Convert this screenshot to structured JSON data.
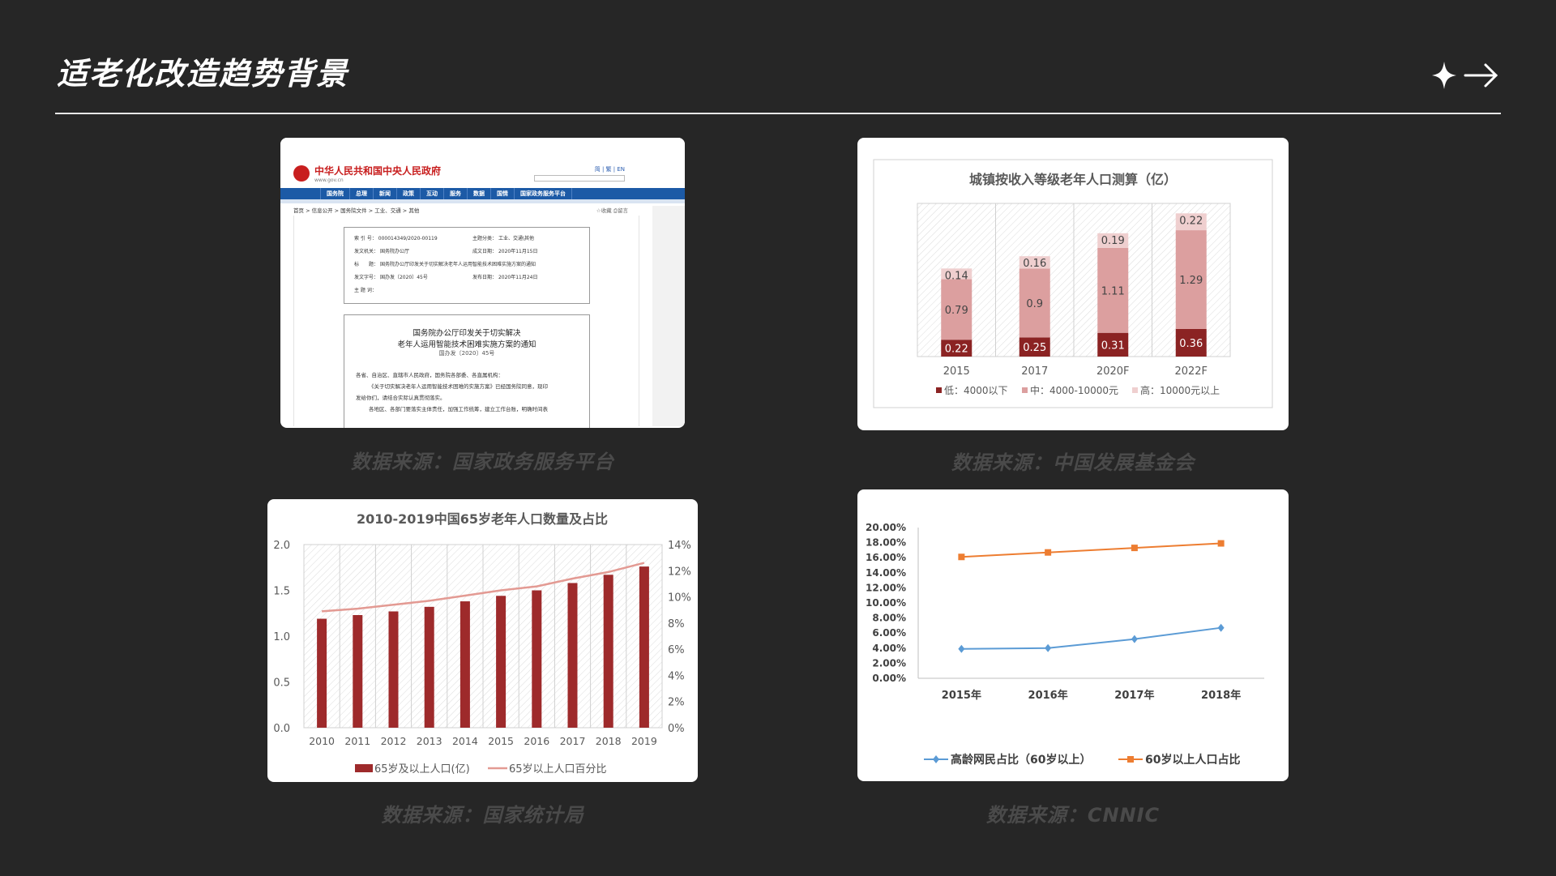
{
  "slide": {
    "title": "适老化改造趋势背景"
  },
  "icons": {
    "sparkle": "sparkle-icon",
    "arrow": "arrow-right-icon"
  },
  "captions": [
    "数据来源：国家政务服务平台",
    "数据来源：中国发展基金会",
    "数据来源：国家统计局",
    "数据来源：CNNIC"
  ],
  "gov_page": {
    "site_name": "中华人民共和国中央人民政府",
    "site_url": "www.gov.cn",
    "tools": "简 | 繁 | EN",
    "nav": [
      "国务院",
      "总理",
      "新闻",
      "政策",
      "互动",
      "服务",
      "数据",
      "国情",
      "国家政务服务平台"
    ],
    "breadcrumb": "首页 > 信息公开 > 国务院文件 > 工业、交通 > 其他",
    "fav": "☆收藏  ⎙留言",
    "meta": {
      "index_label": "索 引 号：",
      "index": "000014349/2020-00119",
      "topic_label": "主题分类：",
      "topic": "工业、交通\\其他",
      "issuer_label": "发文机关：",
      "issuer": "国务院办公厅",
      "date_label": "成文日期：",
      "date": "2020年11月15日",
      "title_label": "标　　题：",
      "title": "国务院办公厅印发关于切实解决老年人运用智能技术困难实施方案的通知",
      "doc_no_label": "发文字号：",
      "doc_no": "国办发〔2020〕45号",
      "pub_label": "发布日期：",
      "pub": "2020年11月24日",
      "subject_label": "主 题 词："
    },
    "notice": {
      "title1": "国务院办公厅印发关于切实解决",
      "title2": "老年人运用智能技术困难实施方案的通知",
      "doc_no": "国办发〔2020〕45号",
      "para1": "各省、自治区、直辖市人民政府，国务院各部委、各直属机构：",
      "para2": "《关于切实解决老年人运用智能技术困难的实施方案》已经国务院同意，现印",
      "para3": "发给你们，请结合实际认真贯彻落实。",
      "para4": "各地区、各部门要落实主体责任，加强工作统筹，建立工作台账，明确时间表"
    }
  },
  "chart_data": [
    {
      "type": "bar",
      "stacked": true,
      "title": "城镇按收入等级老年人口测算（亿）",
      "categories": [
        "2015",
        "2017",
        "2020F",
        "2022F"
      ],
      "series": [
        {
          "name": "低：4000以下",
          "values": [
            0.22,
            0.25,
            0.31,
            0.36
          ],
          "color": "#8b2323"
        },
        {
          "name": "中：4000-10000元",
          "values": [
            0.79,
            0.9,
            1.11,
            1.29
          ],
          "color": "#dc9f9f"
        },
        {
          "name": "高：10000元以上",
          "values": [
            0.14,
            0.16,
            0.19,
            0.22
          ],
          "color": "#efcfcf"
        }
      ],
      "ylim": [
        0,
        2.0
      ],
      "legend": "bottom",
      "grid": false
    },
    {
      "type": "bar+line",
      "title": "2010-2019中国65岁老年人口数量及占比",
      "categories": [
        "2010",
        "2011",
        "2012",
        "2013",
        "2014",
        "2015",
        "2016",
        "2017",
        "2018",
        "2019"
      ],
      "series": [
        {
          "name": "65岁及以上人口(亿)",
          "type": "bar",
          "axis": "left",
          "values": [
            1.19,
            1.23,
            1.27,
            1.32,
            1.38,
            1.44,
            1.5,
            1.58,
            1.67,
            1.76
          ],
          "color": "#9e2a2b"
        },
        {
          "name": "65岁以上人口百分比",
          "type": "line",
          "axis": "right",
          "values": [
            0.089,
            0.091,
            0.094,
            0.097,
            0.101,
            0.105,
            0.108,
            0.114,
            0.119,
            0.126
          ],
          "color": "#e39a93"
        }
      ],
      "yleft": {
        "min": 0,
        "max": 2.0,
        "ticks": [
          "0.0",
          "0.5",
          "1.0",
          "1.5",
          "2.0"
        ]
      },
      "yright": {
        "min": 0,
        "max": 0.14,
        "ticks": [
          "0%",
          "2%",
          "4%",
          "6%",
          "8%",
          "10%",
          "12%",
          "14%"
        ]
      },
      "legend": "bottom"
    },
    {
      "type": "line",
      "title": "",
      "categories": [
        "2015年",
        "2016年",
        "2017年",
        "2018年"
      ],
      "series": [
        {
          "name": "高龄网民占比（60岁以上）",
          "values": [
            0.039,
            0.04,
            0.052,
            0.067
          ],
          "color": "#5b9bd5",
          "marker": "diamond"
        },
        {
          "name": "60岁以上人口占比",
          "values": [
            0.161,
            0.167,
            0.173,
            0.179
          ],
          "color": "#ed7d31",
          "marker": "square"
        }
      ],
      "ylim": [
        0,
        0.2
      ],
      "yticks": [
        "0.00%",
        "2.00%",
        "4.00%",
        "6.00%",
        "8.00%",
        "10.00%",
        "12.00%",
        "14.00%",
        "16.00%",
        "18.00%",
        "20.00%"
      ],
      "legend": "bottom",
      "grid": false
    }
  ]
}
